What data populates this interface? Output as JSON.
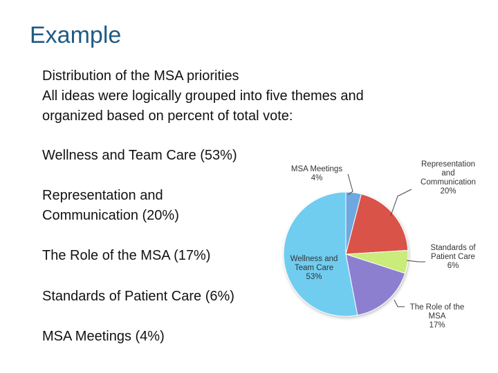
{
  "slide": {
    "title": "Example",
    "intro_lines": [
      "Distribution of the MSA priorities",
      "All ideas were logically grouped into five themes and",
      "organized based on percent of total vote:"
    ],
    "themes": [
      "Wellness and Team Care (53%)",
      "Representation and\nCommunication (20%)",
      "The Role of the MSA (17%)",
      "Standards of Patient Care (6%)",
      "MSA Meetings (4%)"
    ]
  },
  "chart_data": {
    "type": "pie",
    "title": "",
    "slices": [
      {
        "name": "MSA Meetings",
        "value": 4,
        "label_lines": [
          "MSA Meetings",
          "4%"
        ],
        "color": "#6ea8e0"
      },
      {
        "name": "Representation and Communication",
        "value": 20,
        "label_lines": [
          "Representation",
          "and",
          "Communication",
          "20%"
        ],
        "color": "#d9534a"
      },
      {
        "name": "Standards of Patient Care",
        "value": 6,
        "label_lines": [
          "Standards of",
          "Patient Care",
          "6%"
        ],
        "color": "#c9ec7a"
      },
      {
        "name": "The Role of the MSA",
        "value": 17,
        "label_lines": [
          "The Role of the",
          "MSA",
          "17%"
        ],
        "color": "#8d7fd0"
      },
      {
        "name": "Wellness and Team Care",
        "value": 53,
        "label_lines": [
          "Wellness and",
          "Team Care",
          "53%"
        ],
        "color": "#6fcdf0"
      }
    ],
    "legend": "none"
  }
}
